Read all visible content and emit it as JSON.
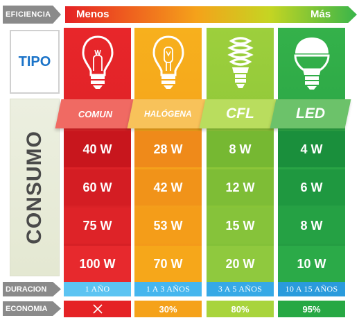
{
  "efficiency": {
    "label": "EFICIENCIA",
    "min_label": "Menos",
    "max_label": "Más"
  },
  "row_labels": {
    "tipo": "TIPO",
    "consumo": "CONSUMO",
    "duracion": "DURACION",
    "economia": "ECONOMIA"
  },
  "columns": [
    {
      "name": "COMUN",
      "icon": "incandescent-bulb-icon",
      "consumo": [
        "40 W",
        "60 W",
        "75 W",
        "100 W"
      ],
      "duracion": "1 AÑO",
      "economia": "",
      "economia_icon": "x-icon"
    },
    {
      "name": "HALÓGENA",
      "icon": "halogen-bulb-icon",
      "consumo": [
        "28 W",
        "42 W",
        "53 W",
        "70 W"
      ],
      "duracion": "1 A 3 AÑOS",
      "economia": "30%"
    },
    {
      "name": "CFL",
      "icon": "cfl-bulb-icon",
      "consumo": [
        "8 W",
        "12 W",
        "15 W",
        "20 W"
      ],
      "duracion": "3 A 5 AÑOS",
      "economia": "80%"
    },
    {
      "name": "LED",
      "icon": "led-bulb-icon",
      "consumo": [
        "4 W",
        "6 W",
        "8 W",
        "10 W"
      ],
      "duracion": "10 A 15 AÑOS",
      "economia": "95%"
    }
  ],
  "colors": {
    "comun": "#e52225",
    "halogena": "#f5a21a",
    "cfl": "#8cc63f",
    "led": "#27a844",
    "duracion": "#3aaee8",
    "label_gray": "#8a8a8a"
  }
}
